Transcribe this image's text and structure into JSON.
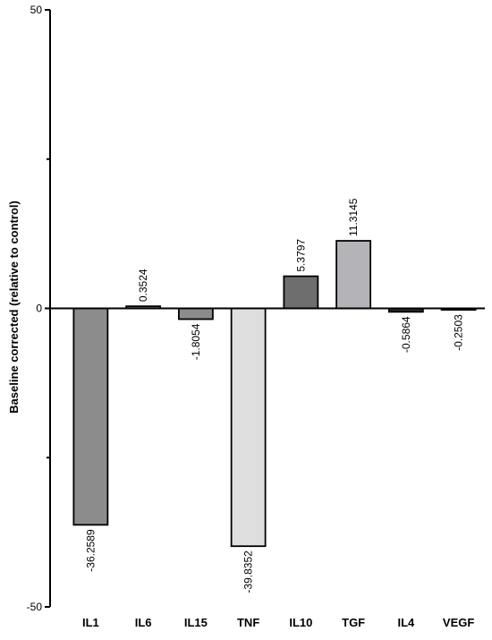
{
  "chart_data": {
    "type": "bar",
    "title": "",
    "xlabel": "",
    "ylabel": "Baseline corrected (relative to control)",
    "ylim": [
      -50,
      50
    ],
    "yticks": [
      -50,
      0,
      50
    ],
    "grid": false,
    "categories": [
      "IL1",
      "IL6",
      "IL15",
      "TNF",
      "IL10",
      "TGF",
      "IL4",
      "VEGF"
    ],
    "values": [
      -36.2589,
      0.3524,
      -1.8054,
      -39.8352,
      5.3797,
      11.3145,
      -0.5864,
      -0.2503
    ],
    "value_labels": [
      "-36.2589",
      "0.3524",
      "-1.8054",
      "-39.8352",
      "5.3797",
      "11.3145",
      "-0.5864",
      "-0.2503"
    ],
    "colors": [
      "#8c8c8c",
      "#8c8c8c",
      "#8c8c8c",
      "#dedede",
      "#6e6e6e",
      "#b4b4b8",
      "#2a2a2a",
      "#2a2a2a"
    ]
  }
}
